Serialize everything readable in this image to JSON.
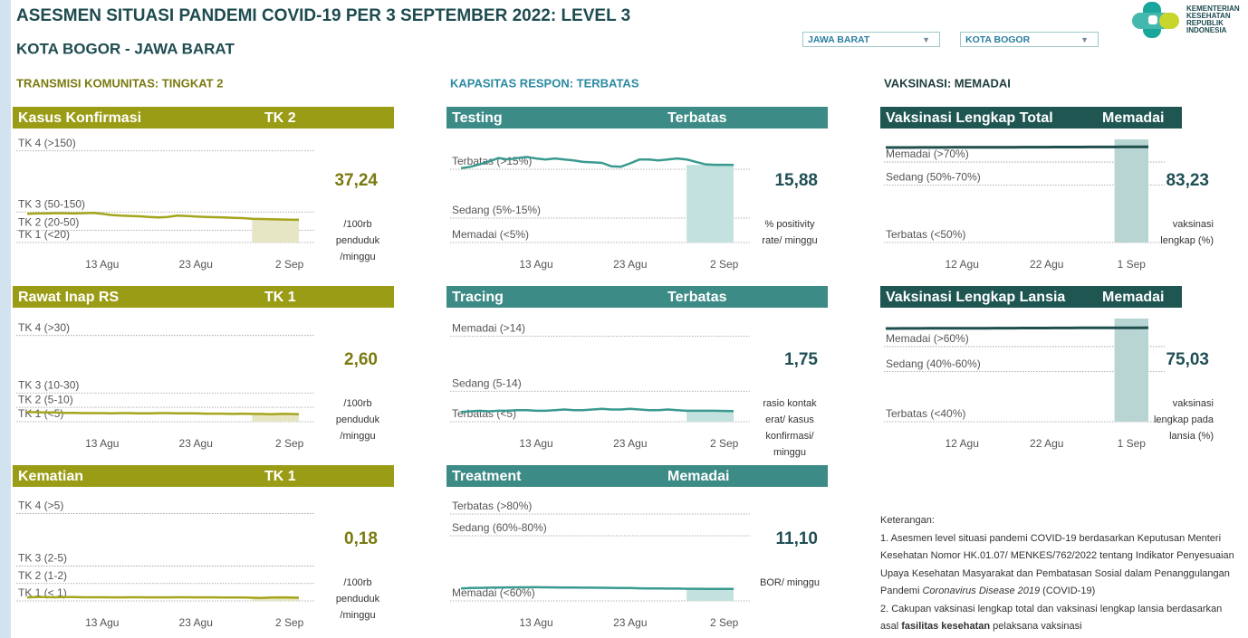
{
  "header": {
    "title": "ASESMEN SITUASI PANDEMI COVID-19 PER 3 SEPTEMBER 2022: LEVEL 3",
    "subtitle": "KOTA BOGOR - JAWA BARAT"
  },
  "filters": [
    "JAWA BARAT",
    "KOTA BOGOR"
  ],
  "logo": [
    "KEMENTERIAN",
    "KESEHATAN",
    "REPUBLIK",
    "INDONESIA"
  ],
  "sections": [
    "TRANSMISI KOMUNITAS: TINGKAT 2",
    "KAPASITAS RESPON: TERBATAS",
    "VAKSINASI: MEMADAI"
  ],
  "chart_data": [
    {
      "type": "line",
      "title": "Kasus Konfirmasi",
      "level": "TK 2",
      "headline": "37,24",
      "unit": [
        "/100rb",
        "penduduk",
        "/minggu"
      ],
      "header_color": "#9b9c16",
      "color": "#a5a51e",
      "shade_color": "#e6e6c4",
      "categories": [
        null,
        null,
        null,
        null,
        null,
        null,
        null,
        null,
        "13 Agu",
        null,
        null,
        null,
        null,
        null,
        null,
        null,
        null,
        null,
        "23 Agu",
        null,
        null,
        null,
        null,
        null,
        null,
        null,
        null,
        null,
        "2 Sep",
        null
      ],
      "values": [
        47,
        47.5,
        47.5,
        48,
        48,
        47.5,
        48,
        48.5,
        47,
        45,
        44,
        43.5,
        43,
        42,
        41,
        42,
        44,
        43.5,
        42.5,
        42,
        41.5,
        41,
        40.5,
        40,
        39,
        38.5,
        38,
        37.8,
        37.5,
        37.24
      ],
      "ylim": [
        0,
        160
      ],
      "yticks": [
        {
          "value": 150,
          "label": "TK 4 (>150)"
        },
        {
          "value": 50,
          "label": "TK 3 (50-150)"
        },
        {
          "value": 20,
          "label": "TK 2 (20-50)"
        },
        {
          "value": 0,
          "label": "TK 1 (<20)"
        }
      ]
    },
    {
      "type": "line",
      "title": "Rawat Inap RS",
      "level": "TK 1",
      "headline": "2,60",
      "unit": [
        "/100rb",
        "penduduk",
        "/minggu"
      ],
      "header_color": "#9b9c16",
      "color": "#a5a51e",
      "shade_color": "#e6e6c4",
      "categories": [
        null,
        null,
        null,
        null,
        null,
        null,
        null,
        null,
        "13 Agu",
        null,
        null,
        null,
        null,
        null,
        null,
        null,
        null,
        null,
        "23 Agu",
        null,
        null,
        null,
        null,
        null,
        null,
        null,
        null,
        null,
        "2 Sep",
        null
      ],
      "values": [
        3.4,
        3.3,
        3.2,
        3.2,
        3.1,
        3.1,
        3.0,
        3.0,
        3.0,
        2.9,
        3.0,
        3.0,
        2.9,
        2.9,
        3.0,
        3.0,
        2.9,
        2.9,
        2.9,
        2.8,
        2.8,
        2.8,
        2.7,
        2.8,
        2.7,
        2.7,
        2.6,
        2.7,
        2.7,
        2.6
      ],
      "ylim": [
        0,
        34
      ],
      "yticks": [
        {
          "value": 30,
          "label": "TK 4 (>30)"
        },
        {
          "value": 10,
          "label": "TK 3 (10-30)"
        },
        {
          "value": 5,
          "label": "TK 2 (5-10)"
        },
        {
          "value": 0,
          "label": "TK 1 (<5)"
        }
      ]
    },
    {
      "type": "line",
      "title": "Kematian",
      "level": "TK 1",
      "headline": "0,18",
      "unit": [
        "/100rb",
        "penduduk",
        "/minggu"
      ],
      "header_color": "#9b9c16",
      "color": "#a5a51e",
      "shade_color": "#e6e6c4",
      "categories": [
        null,
        null,
        null,
        null,
        null,
        null,
        null,
        null,
        "13 Agu",
        null,
        null,
        null,
        null,
        null,
        null,
        null,
        null,
        null,
        "23 Agu",
        null,
        null,
        null,
        null,
        null,
        null,
        null,
        null,
        null,
        "2 Sep",
        null
      ],
      "values": [
        0.2,
        0.22,
        0.22,
        0.21,
        0.22,
        0.22,
        0.21,
        0.21,
        0.21,
        0.2,
        0.2,
        0.21,
        0.21,
        0.2,
        0.2,
        0.2,
        0.21,
        0.21,
        0.2,
        0.2,
        0.2,
        0.19,
        0.19,
        0.19,
        0.18,
        0.17,
        0.19,
        0.2,
        0.19,
        0.18
      ],
      "ylim": [
        0,
        5.6
      ],
      "yticks": [
        {
          "value": 5,
          "label": "TK 4 (>5)"
        },
        {
          "value": 2,
          "label": "TK 3 (2-5)"
        },
        {
          "value": 1,
          "label": "TK 2 (1-2)"
        },
        {
          "value": 0,
          "label": "TK 1 (< 1)"
        }
      ]
    },
    {
      "type": "line",
      "title": "Testing",
      "level": "Terbatas",
      "headline": "15,88",
      "unit": [
        "% positivity",
        "rate/ minggu"
      ],
      "header_color": "#3d8b87",
      "color": "#3a9a90",
      "shade_color": "#c3e2df",
      "categories": [
        null,
        null,
        null,
        null,
        null,
        null,
        null,
        null,
        "13 Agu",
        null,
        null,
        null,
        null,
        null,
        null,
        null,
        null,
        null,
        "23 Agu",
        null,
        null,
        null,
        null,
        null,
        null,
        null,
        null,
        null,
        "2 Sep",
        null
      ],
      "values": [
        15.2,
        15.5,
        16,
        16.6,
        17.3,
        17,
        17.3,
        17.5,
        17.2,
        17,
        17.2,
        17,
        16.8,
        16.5,
        16.4,
        16.3,
        15.6,
        15.5,
        16.2,
        17,
        17,
        16.8,
        17,
        17.2,
        17,
        16.5,
        16,
        15.9,
        15.9,
        15.88
      ],
      "ylim": [
        0,
        20
      ],
      "yticks": [
        {
          "value": 15,
          "label": "Terbatas (>15%)"
        },
        {
          "value": 5,
          "label": "Sedang (5%-15%)"
        },
        {
          "value": 0,
          "label": "Memadai (<5%)"
        }
      ]
    },
    {
      "type": "line",
      "title": "Tracing",
      "level": "Terbatas",
      "headline": "1,75",
      "unit": [
        "rasio kontak",
        "erat/ kasus",
        "konfirmasi/",
        "minggu"
      ],
      "header_color": "#3d8b87",
      "color": "#3a9a90",
      "shade_color": "#c3e2df",
      "categories": [
        null,
        null,
        null,
        null,
        null,
        null,
        null,
        null,
        "13 Agu",
        null,
        null,
        null,
        null,
        null,
        null,
        null,
        null,
        null,
        "23 Agu",
        null,
        null,
        null,
        null,
        null,
        null,
        null,
        null,
        null,
        "2 Sep",
        null
      ],
      "values": [
        1.6,
        1.7,
        1.8,
        1.7,
        1.8,
        1.8,
        1.9,
        1.9,
        1.8,
        1.8,
        1.9,
        2.0,
        1.9,
        1.9,
        2.0,
        2.1,
        2.0,
        2.0,
        2.1,
        2.0,
        1.9,
        1.9,
        2.0,
        1.9,
        1.8,
        1.8,
        1.8,
        1.8,
        1.77,
        1.75
      ],
      "ylim": [
        0,
        16
      ],
      "yticks": [
        {
          "value": 14,
          "label": "Memadai (>14)"
        },
        {
          "value": 5,
          "label": "Sedang (5-14)"
        },
        {
          "value": 0,
          "label": "Terbatas (<5)"
        }
      ]
    },
    {
      "type": "line",
      "title": "Treatment",
      "level": "Memadai",
      "headline": "11,10",
      "unit": [
        "BOR/ minggu"
      ],
      "header_color": "#3d8b87",
      "color": "#3a9a90",
      "shade_color": "#c3e2df",
      "categories": [
        null,
        null,
        null,
        null,
        null,
        null,
        null,
        null,
        "13 Agu",
        null,
        null,
        null,
        null,
        null,
        null,
        null,
        null,
        null,
        "23 Agu",
        null,
        null,
        null,
        null,
        null,
        null,
        null,
        null,
        null,
        "2 Sep",
        null
      ],
      "values": [
        11.5,
        11.8,
        12,
        12.2,
        12.3,
        12.4,
        12.5,
        12.5,
        12.6,
        12.5,
        12.4,
        12.3,
        12.3,
        12.2,
        12.2,
        12.1,
        12,
        11.9,
        11.8,
        11.6,
        11.5,
        11.4,
        11.3,
        11.3,
        11.2,
        11.2,
        11.1,
        11.1,
        11.1,
        11.1
      ],
      "ylim": [
        0,
        90
      ],
      "yticks": [
        {
          "value": 80,
          "label": "Terbatas (>80%)"
        },
        {
          "value": 60,
          "label": "Sedang (60%-80%)"
        },
        {
          "value": 0,
          "label": "Memadai (<60%)"
        }
      ]
    },
    {
      "type": "line",
      "title": "Vaksinasi Lengkap Total",
      "level": "Memadai",
      "headline": "83,23",
      "unit": [
        "vaksinasi",
        "lengkap (%)"
      ],
      "header_color": "#1f5652",
      "color": "#1f4f4c",
      "shade_color": "#b9d5d3",
      "categories": [
        null,
        null,
        null,
        null,
        null,
        null,
        null,
        null,
        null,
        "12 Agu",
        null,
        null,
        null,
        null,
        null,
        null,
        null,
        null,
        null,
        "22 Agu",
        null,
        null,
        null,
        null,
        null,
        null,
        null,
        null,
        null,
        "1 Sep",
        null,
        null
      ],
      "values": [
        82.6,
        82.62,
        82.64,
        82.66,
        82.68,
        82.7,
        82.72,
        82.74,
        82.76,
        82.78,
        82.8,
        82.82,
        82.84,
        82.86,
        82.88,
        82.9,
        82.92,
        82.94,
        82.96,
        82.98,
        83.0,
        83.02,
        83.04,
        83.06,
        83.08,
        83.1,
        83.12,
        83.14,
        83.16,
        83.18,
        83.2,
        83.23
      ],
      "ylim": [
        0,
        85
      ],
      "yticks": [
        {
          "value": 70,
          "label": "Memadai (>70%)"
        },
        {
          "value": 50,
          "label": "Sedang (50%-70%)"
        },
        {
          "value": 0,
          "label": "Terbatas (<50%)"
        }
      ]
    },
    {
      "type": "line",
      "title": "Vaksinasi Lengkap Lansia",
      "level": "Memadai",
      "headline": "75,03",
      "unit": [
        "vaksinasi",
        "lengkap pada",
        "lansia (%)"
      ],
      "header_color": "#1f5652",
      "color": "#1f4f4c",
      "shade_color": "#b9d5d3",
      "categories": [
        null,
        null,
        null,
        null,
        null,
        null,
        null,
        null,
        null,
        "12 Agu",
        null,
        null,
        null,
        null,
        null,
        null,
        null,
        null,
        null,
        "22 Agu",
        null,
        null,
        null,
        null,
        null,
        null,
        null,
        null,
        null,
        "1 Sep",
        null,
        null
      ],
      "values": [
        74.4,
        74.42,
        74.44,
        74.46,
        74.48,
        74.5,
        74.52,
        74.54,
        74.56,
        74.58,
        74.6,
        74.62,
        74.64,
        74.66,
        74.68,
        74.7,
        74.72,
        74.74,
        74.76,
        74.78,
        74.8,
        74.82,
        74.84,
        74.86,
        74.88,
        74.9,
        74.92,
        74.94,
        74.96,
        74.98,
        75.0,
        75.03
      ],
      "ylim": [
        0,
        78
      ],
      "yticks": [
        {
          "value": 60,
          "label": "Memadai (>60%)"
        },
        {
          "value": 40,
          "label": "Sedang (40%-60%)"
        },
        {
          "value": 0,
          "label": "Terbatas (<40%)"
        }
      ]
    }
  ],
  "notes": {
    "heading": "Keterangan:",
    "items": [
      {
        "text": "1. Asesmen level situasi pandemi COVID-19 berdasarkan Keputusan Menteri Kesehatan Nomor HK.01.07/ MENKES/762/2022 tentang Indikator Penyesuaian Upaya Kesehatan Masyarakat dan Pembatasan Sosial dalam Penanggulangan Pandemi ",
        "italic": "Coronavirus Disease 2019",
        "end": " (COVID-19)"
      },
      {
        "text": "2. Cakupan vaksinasi lengkap total dan vaksinasi lengkap lansia berdasarkan asal ",
        "bold": "fasilitas kesehatan",
        "end": " pelaksana vaksinasi"
      }
    ]
  }
}
